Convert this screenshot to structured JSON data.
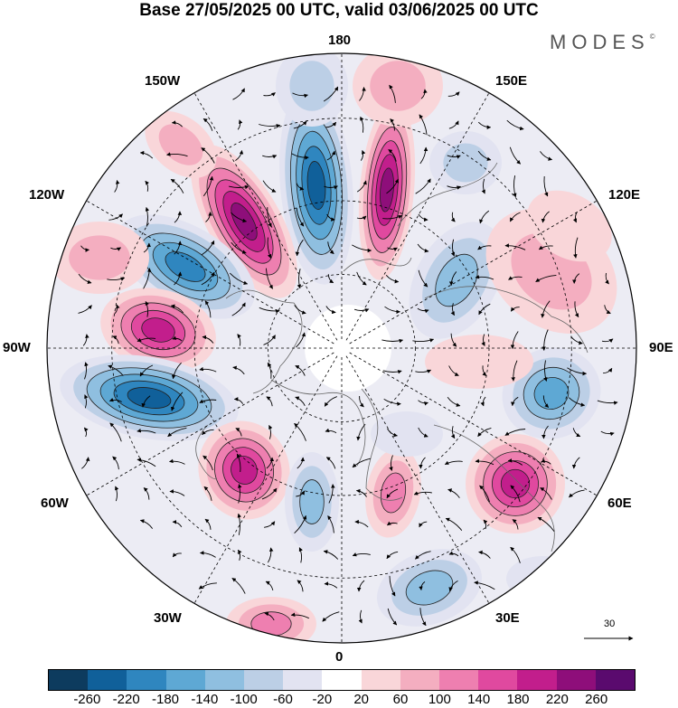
{
  "title": "Base 27/05/2025 00 UTC, valid 03/06/2025 00 UTC",
  "logo": {
    "text": "MODES",
    "mark": "©"
  },
  "longitude_labels": {
    "top": "180",
    "bottom": "0",
    "left": "90W",
    "right": "90E",
    "upper_left_1": "150W",
    "upper_left_2": "120W",
    "upper_right_1": "150E",
    "upper_right_2": "120E",
    "lower_left_1": "60W",
    "lower_left_2": "30W",
    "lower_right_1": "60E",
    "lower_right_2": "30E"
  },
  "reference_vector": {
    "label": "30"
  },
  "colorbar": {
    "colors": [
      "#0d3b5e",
      "#10609a",
      "#2f86bf",
      "#5ea8d4",
      "#8fbfe0",
      "#bccfe6",
      "#e2e3f1",
      "#ffffff",
      "#f9d6d9",
      "#f4aec0",
      "#ee7fb0",
      "#e0499f",
      "#c21e8c",
      "#8e0e7a",
      "#5a0a6e"
    ],
    "tick_labels": [
      "-260",
      "-220",
      "-180",
      "-140",
      "-100",
      "-60",
      "-20",
      "20",
      "60",
      "100",
      "140",
      "180",
      "220",
      "260"
    ]
  },
  "map_data": {
    "projection": "north polar stereographic",
    "field": "anomaly",
    "anomalies": [
      {
        "sign": "negative",
        "level": -220,
        "region": "north pacific near dateline"
      },
      {
        "sign": "positive",
        "level": 220,
        "region": "east siberian sea / bering"
      },
      {
        "sign": "positive",
        "level": 220,
        "region": "gulf of alaska"
      },
      {
        "sign": "negative",
        "level": -200,
        "region": "western canada"
      },
      {
        "sign": "positive",
        "level": 180,
        "region": "central canada"
      },
      {
        "sign": "negative",
        "level": -220,
        "region": "eastern north america"
      },
      {
        "sign": "positive",
        "level": 180,
        "region": "north atlantic west"
      },
      {
        "sign": "negative",
        "level": -140,
        "region": "greenland south"
      },
      {
        "sign": "positive",
        "level": 140,
        "region": "north atlantic central"
      },
      {
        "sign": "negative",
        "level": -100,
        "region": "europe west"
      },
      {
        "sign": "positive",
        "level": 180,
        "region": "eastern europe / russia"
      },
      {
        "sign": "negative",
        "level": -160,
        "region": "siberia west"
      },
      {
        "sign": "negative",
        "level": -120,
        "region": "east siberia"
      },
      {
        "sign": "positive",
        "level": 60,
        "region": "northern asia"
      },
      {
        "sign": "negative",
        "level": -140,
        "region": "kamchatka"
      }
    ]
  }
}
